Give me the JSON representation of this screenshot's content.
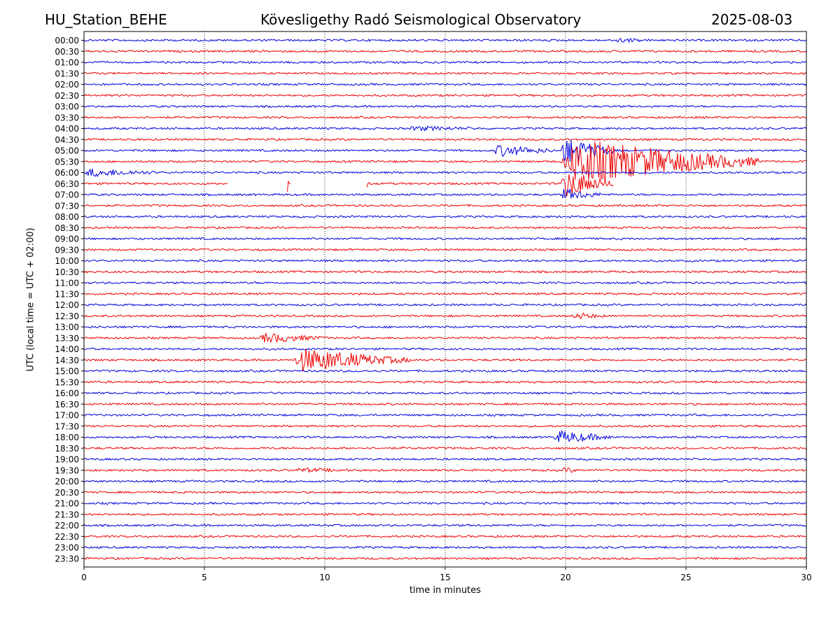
{
  "header": {
    "station": "HU_Station_BEHE",
    "observatory": "Kövesligethy Radó Seismological Observatory",
    "date": "2025-08-03"
  },
  "chart_data": {
    "type": "line",
    "title": "Kövesligethy Radó Seismological Observatory",
    "xlabel": "time in minutes",
    "ylabel": "UTC (local time = UTC + 02:00)",
    "xlim": [
      0,
      30
    ],
    "xticks": [
      0,
      5,
      10,
      15,
      20,
      25,
      30
    ],
    "grid": "vertical dotted at each x tick",
    "colors": [
      "#0000dd",
      "#ee0000"
    ],
    "rows": [
      "00:00",
      "00:30",
      "01:00",
      "01:30",
      "02:00",
      "02:30",
      "03:00",
      "03:30",
      "04:00",
      "04:30",
      "05:00",
      "05:30",
      "06:00",
      "06:30",
      "07:00",
      "07:30",
      "08:00",
      "08:30",
      "09:00",
      "09:30",
      "10:00",
      "10:30",
      "11:00",
      "11:30",
      "12:00",
      "12:30",
      "13:00",
      "13:30",
      "14:00",
      "14:30",
      "15:00",
      "15:30",
      "16:00",
      "16:30",
      "17:00",
      "17:30",
      "18:00",
      "18:30",
      "19:00",
      "19:30",
      "20:00",
      "20:30",
      "21:00",
      "21:30",
      "22:00",
      "22:30",
      "23:00",
      "23:30"
    ],
    "events": [
      {
        "row": "00:00",
        "start_min": 22.0,
        "end_min": 23.5,
        "amplitude": 0.4
      },
      {
        "row": "04:00",
        "start_min": 13.5,
        "end_min": 16.5,
        "amplitude": 0.4
      },
      {
        "row": "05:00",
        "start_min": 17.0,
        "end_min": 19.5,
        "amplitude": 1.2
      },
      {
        "row": "05:00",
        "start_min": 19.8,
        "end_min": 22.0,
        "amplitude": 3.0
      },
      {
        "row": "05:30",
        "start_min": 19.8,
        "end_min": 28.0,
        "amplitude": 5.0
      },
      {
        "row": "06:00",
        "start_min": 0.0,
        "end_min": 3.0,
        "amplitude": 0.8
      },
      {
        "row": "06:30",
        "start_min": 19.8,
        "end_min": 22.0,
        "amplitude": 3.0
      },
      {
        "row": "07:00",
        "start_min": 19.8,
        "end_min": 21.5,
        "amplitude": 1.2
      },
      {
        "row": "12:30",
        "start_min": 20.3,
        "end_min": 21.6,
        "amplitude": 0.7
      },
      {
        "row": "13:30",
        "start_min": 7.3,
        "end_min": 10.0,
        "amplitude": 1.0
      },
      {
        "row": "14:30",
        "start_min": 8.7,
        "end_min": 13.5,
        "amplitude": 2.5
      },
      {
        "row": "18:00",
        "start_min": 19.5,
        "end_min": 22.0,
        "amplitude": 1.3
      },
      {
        "row": "19:30",
        "start_min": 8.8,
        "end_min": 11.0,
        "amplitude": 0.4
      },
      {
        "row": "19:30",
        "start_min": 19.9,
        "end_min": 20.5,
        "amplitude": 0.6
      }
    ],
    "gaps": [
      {
        "row": "06:30",
        "start_min": 6.0,
        "end_min": 8.4
      },
      {
        "row": "06:30",
        "start_min": 8.6,
        "end_min": 11.7
      },
      {
        "row": "06:30",
        "start_min": 22.0,
        "end_min": 30.0
      }
    ],
    "spikes": [
      {
        "row": "06:30",
        "at_min": 8.45,
        "amplitude": 2.0
      },
      {
        "row": "06:30",
        "at_min": 11.8,
        "amplitude": 0.8
      }
    ]
  }
}
